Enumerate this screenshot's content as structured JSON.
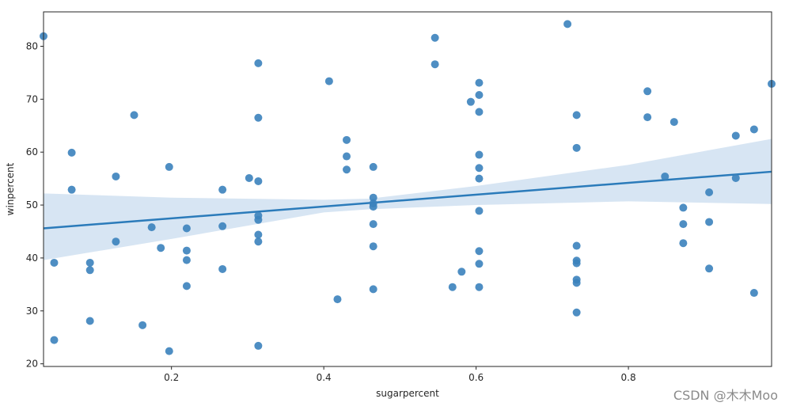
{
  "chart_data": {
    "type": "scatter",
    "title": "",
    "xlabel": "sugarpercent",
    "ylabel": "winpercent",
    "xlim": [
      0.032,
      0.988
    ],
    "ylim": [
      19.5,
      86.5
    ],
    "xticks": [
      0.2,
      0.4,
      0.6,
      0.8
    ],
    "xtick_labels": [
      "0.2",
      "0.4",
      "0.6",
      "0.8"
    ],
    "yticks": [
      20,
      30,
      40,
      50,
      60,
      70,
      80
    ],
    "ytick_labels": [
      "20",
      "30",
      "40",
      "50",
      "60",
      "70",
      "80"
    ],
    "grid": false,
    "colors": {
      "points": "#3b82bd",
      "line": "#2b7bba",
      "band": "#c6daee"
    },
    "regression": {
      "x": [
        0.032,
        0.988
      ],
      "y": [
        45.6,
        56.3
      ]
    },
    "confidence_band": {
      "x": [
        0.032,
        0.2,
        0.4,
        0.46,
        0.6,
        0.8,
        0.988
      ],
      "upper": [
        52.2,
        51.4,
        51.0,
        51.2,
        53.6,
        57.6,
        62.5
      ],
      "lower": [
        39.6,
        43.6,
        48.6,
        49.2,
        50.0,
        50.7,
        50.2
      ]
    },
    "points": [
      {
        "x": 0.032,
        "y": 81.9
      },
      {
        "x": 0.046,
        "y": 39.1
      },
      {
        "x": 0.046,
        "y": 24.5
      },
      {
        "x": 0.069,
        "y": 59.9
      },
      {
        "x": 0.069,
        "y": 52.9
      },
      {
        "x": 0.093,
        "y": 39.1
      },
      {
        "x": 0.093,
        "y": 37.7
      },
      {
        "x": 0.093,
        "y": 28.1
      },
      {
        "x": 0.127,
        "y": 55.4
      },
      {
        "x": 0.127,
        "y": 43.1
      },
      {
        "x": 0.151,
        "y": 67.0
      },
      {
        "x": 0.162,
        "y": 27.3
      },
      {
        "x": 0.174,
        "y": 45.8
      },
      {
        "x": 0.186,
        "y": 41.9
      },
      {
        "x": 0.197,
        "y": 57.2
      },
      {
        "x": 0.197,
        "y": 22.4
      },
      {
        "x": 0.22,
        "y": 45.6
      },
      {
        "x": 0.22,
        "y": 41.4
      },
      {
        "x": 0.22,
        "y": 39.6
      },
      {
        "x": 0.22,
        "y": 34.7
      },
      {
        "x": 0.267,
        "y": 52.9
      },
      {
        "x": 0.267,
        "y": 46.0
      },
      {
        "x": 0.267,
        "y": 37.9
      },
      {
        "x": 0.302,
        "y": 55.1
      },
      {
        "x": 0.314,
        "y": 76.8
      },
      {
        "x": 0.314,
        "y": 66.5
      },
      {
        "x": 0.314,
        "y": 54.5
      },
      {
        "x": 0.314,
        "y": 48.0
      },
      {
        "x": 0.314,
        "y": 47.2
      },
      {
        "x": 0.314,
        "y": 44.4
      },
      {
        "x": 0.314,
        "y": 43.1
      },
      {
        "x": 0.314,
        "y": 23.4
      },
      {
        "x": 0.407,
        "y": 73.4
      },
      {
        "x": 0.418,
        "y": 32.2
      },
      {
        "x": 0.43,
        "y": 62.3
      },
      {
        "x": 0.43,
        "y": 59.2
      },
      {
        "x": 0.43,
        "y": 56.7
      },
      {
        "x": 0.465,
        "y": 57.2
      },
      {
        "x": 0.465,
        "y": 51.4
      },
      {
        "x": 0.465,
        "y": 50.3
      },
      {
        "x": 0.465,
        "y": 49.7
      },
      {
        "x": 0.465,
        "y": 46.4
      },
      {
        "x": 0.465,
        "y": 42.2
      },
      {
        "x": 0.465,
        "y": 34.1
      },
      {
        "x": 0.546,
        "y": 81.6
      },
      {
        "x": 0.546,
        "y": 76.6
      },
      {
        "x": 0.569,
        "y": 34.5
      },
      {
        "x": 0.581,
        "y": 37.4
      },
      {
        "x": 0.593,
        "y": 69.5
      },
      {
        "x": 0.604,
        "y": 73.1
      },
      {
        "x": 0.604,
        "y": 70.8
      },
      {
        "x": 0.604,
        "y": 67.6
      },
      {
        "x": 0.604,
        "y": 59.5
      },
      {
        "x": 0.604,
        "y": 57.0
      },
      {
        "x": 0.604,
        "y": 55.0
      },
      {
        "x": 0.604,
        "y": 48.9
      },
      {
        "x": 0.604,
        "y": 41.3
      },
      {
        "x": 0.604,
        "y": 38.9
      },
      {
        "x": 0.604,
        "y": 34.5
      },
      {
        "x": 0.72,
        "y": 84.2
      },
      {
        "x": 0.732,
        "y": 67.0
      },
      {
        "x": 0.732,
        "y": 60.8
      },
      {
        "x": 0.732,
        "y": 42.3
      },
      {
        "x": 0.732,
        "y": 39.5
      },
      {
        "x": 0.732,
        "y": 39.0
      },
      {
        "x": 0.732,
        "y": 35.9
      },
      {
        "x": 0.732,
        "y": 35.3
      },
      {
        "x": 0.732,
        "y": 29.7
      },
      {
        "x": 0.825,
        "y": 71.5
      },
      {
        "x": 0.825,
        "y": 66.6
      },
      {
        "x": 0.848,
        "y": 55.4
      },
      {
        "x": 0.86,
        "y": 65.7
      },
      {
        "x": 0.872,
        "y": 49.5
      },
      {
        "x": 0.872,
        "y": 46.4
      },
      {
        "x": 0.872,
        "y": 42.8
      },
      {
        "x": 0.906,
        "y": 52.4
      },
      {
        "x": 0.906,
        "y": 46.8
      },
      {
        "x": 0.906,
        "y": 38.0
      },
      {
        "x": 0.941,
        "y": 63.1
      },
      {
        "x": 0.941,
        "y": 55.1
      },
      {
        "x": 0.965,
        "y": 64.3
      },
      {
        "x": 0.965,
        "y": 33.4
      },
      {
        "x": 0.988,
        "y": 72.9
      }
    ]
  },
  "watermark": "CSDN @木木Moo"
}
